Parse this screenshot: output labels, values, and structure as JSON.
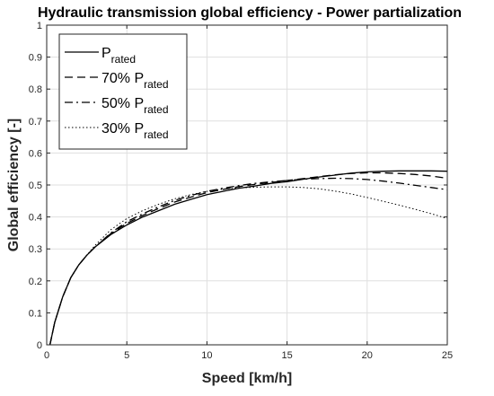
{
  "chart_data": {
    "type": "line",
    "title": "Hydraulic transmission global efficiency - Power partialization",
    "xlabel": "Speed [km/h]",
    "ylabel": "Global efficiency [-]",
    "xlim": [
      0,
      25
    ],
    "ylim": [
      0,
      1
    ],
    "xticks": [
      0,
      5,
      10,
      15,
      20,
      25
    ],
    "yticks": [
      0,
      0.1,
      0.2,
      0.3,
      0.4,
      0.5,
      0.6,
      0.7,
      0.8,
      0.9,
      1
    ],
    "grid": true,
    "legend_position": "top-left",
    "series": [
      {
        "name_prefix": "",
        "name_main": "P",
        "name_sub": "rated",
        "dash": "solid",
        "x": [
          0.2,
          0.5,
          1,
          1.5,
          2,
          2.5,
          3,
          4,
          5,
          6,
          7,
          8,
          9,
          10,
          11,
          12,
          13,
          14,
          15,
          16,
          17,
          18,
          19,
          20,
          21,
          22,
          23,
          24,
          25
        ],
        "y": [
          0.0,
          0.07,
          0.15,
          0.21,
          0.25,
          0.28,
          0.305,
          0.345,
          0.375,
          0.4,
          0.42,
          0.44,
          0.455,
          0.47,
          0.48,
          0.49,
          0.497,
          0.505,
          0.51,
          0.518,
          0.525,
          0.531,
          0.537,
          0.541,
          0.543,
          0.544,
          0.544,
          0.544,
          0.543
        ]
      },
      {
        "name_prefix": "70% ",
        "name_main": "P",
        "name_sub": "rated",
        "dash": "dashed",
        "x": [
          0.2,
          0.5,
          1,
          1.5,
          2,
          2.5,
          3,
          4,
          5,
          6,
          7,
          8,
          9,
          10,
          11,
          12,
          13,
          14,
          15,
          16,
          17,
          18,
          19,
          20,
          21,
          22,
          23,
          24,
          25
        ],
        "y": [
          0.0,
          0.07,
          0.15,
          0.21,
          0.25,
          0.28,
          0.305,
          0.348,
          0.38,
          0.405,
          0.427,
          0.447,
          0.462,
          0.476,
          0.486,
          0.495,
          0.502,
          0.508,
          0.514,
          0.52,
          0.526,
          0.532,
          0.536,
          0.538,
          0.538,
          0.536,
          0.533,
          0.528,
          0.521
        ]
      },
      {
        "name_prefix": "50% ",
        "name_main": "P",
        "name_sub": "rated",
        "dash": "dashdot",
        "x": [
          0.2,
          0.5,
          1,
          1.5,
          2,
          2.5,
          3,
          4,
          5,
          6,
          7,
          8,
          9,
          10,
          11,
          12,
          13,
          14,
          15,
          16,
          17,
          18,
          19,
          20,
          21,
          22,
          23,
          24,
          25
        ],
        "y": [
          0.0,
          0.07,
          0.15,
          0.21,
          0.25,
          0.28,
          0.305,
          0.35,
          0.385,
          0.41,
          0.432,
          0.452,
          0.467,
          0.48,
          0.49,
          0.498,
          0.505,
          0.51,
          0.514,
          0.518,
          0.52,
          0.521,
          0.52,
          0.517,
          0.512,
          0.506,
          0.499,
          0.492,
          0.485
        ]
      },
      {
        "name_prefix": "30% ",
        "name_main": "P",
        "name_sub": "rated",
        "dash": "dotted",
        "x": [
          0.2,
          0.5,
          1,
          1.5,
          2,
          2.5,
          3,
          4,
          5,
          6,
          7,
          8,
          9,
          10,
          11,
          12,
          13,
          14,
          15,
          16,
          17,
          18,
          19,
          20,
          21,
          22,
          23,
          24,
          25
        ],
        "y": [
          0.0,
          0.07,
          0.15,
          0.21,
          0.25,
          0.28,
          0.31,
          0.36,
          0.395,
          0.42,
          0.44,
          0.457,
          0.47,
          0.48,
          0.487,
          0.491,
          0.493,
          0.494,
          0.494,
          0.492,
          0.488,
          0.481,
          0.472,
          0.461,
          0.449,
          0.437,
          0.424,
          0.41,
          0.395
        ]
      }
    ]
  }
}
